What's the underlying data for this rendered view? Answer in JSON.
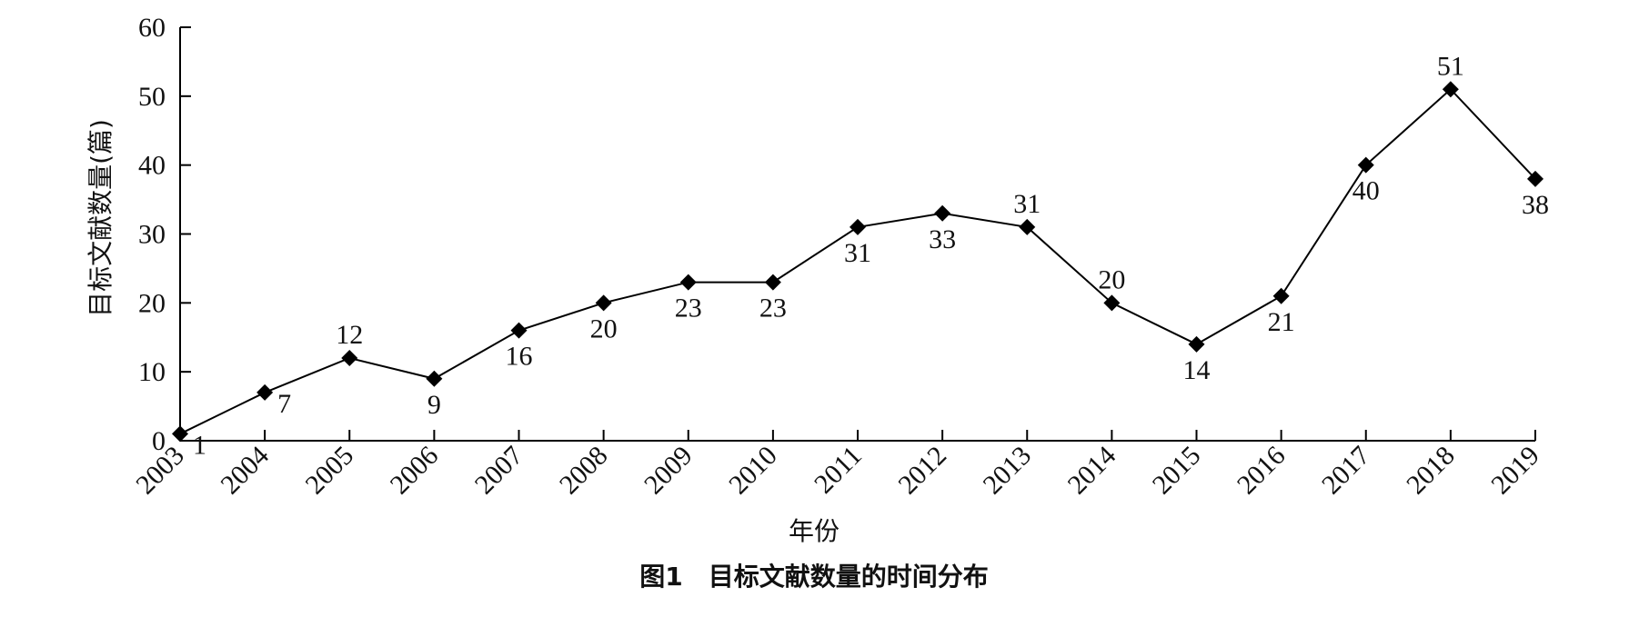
{
  "chart_data": {
    "type": "line",
    "title": "图1　目标文献数量的时间分布",
    "xlabel": "年份",
    "ylabel": "目标文献数量(篇)",
    "x": [
      "2003",
      "2004",
      "2005",
      "2006",
      "2007",
      "2008",
      "2009",
      "2010",
      "2011",
      "2012",
      "2013",
      "2014",
      "2015",
      "2016",
      "2017",
      "2018",
      "2019"
    ],
    "values": [
      1,
      7,
      12,
      9,
      16,
      20,
      23,
      23,
      31,
      33,
      31,
      20,
      14,
      21,
      40,
      51,
      38
    ],
    "labels": [
      "1",
      "7",
      "12",
      "9",
      "16",
      "20",
      "23",
      "23",
      "31",
      "33",
      "31",
      "20",
      "14",
      "21",
      "40",
      "51",
      "38"
    ],
    "ylim": [
      0,
      60
    ],
    "yticks": [
      0,
      10,
      20,
      30,
      40,
      50,
      60
    ],
    "grid": false,
    "marker": "diamond",
    "colors": {
      "line": "#000000",
      "marker": "#000000"
    }
  }
}
